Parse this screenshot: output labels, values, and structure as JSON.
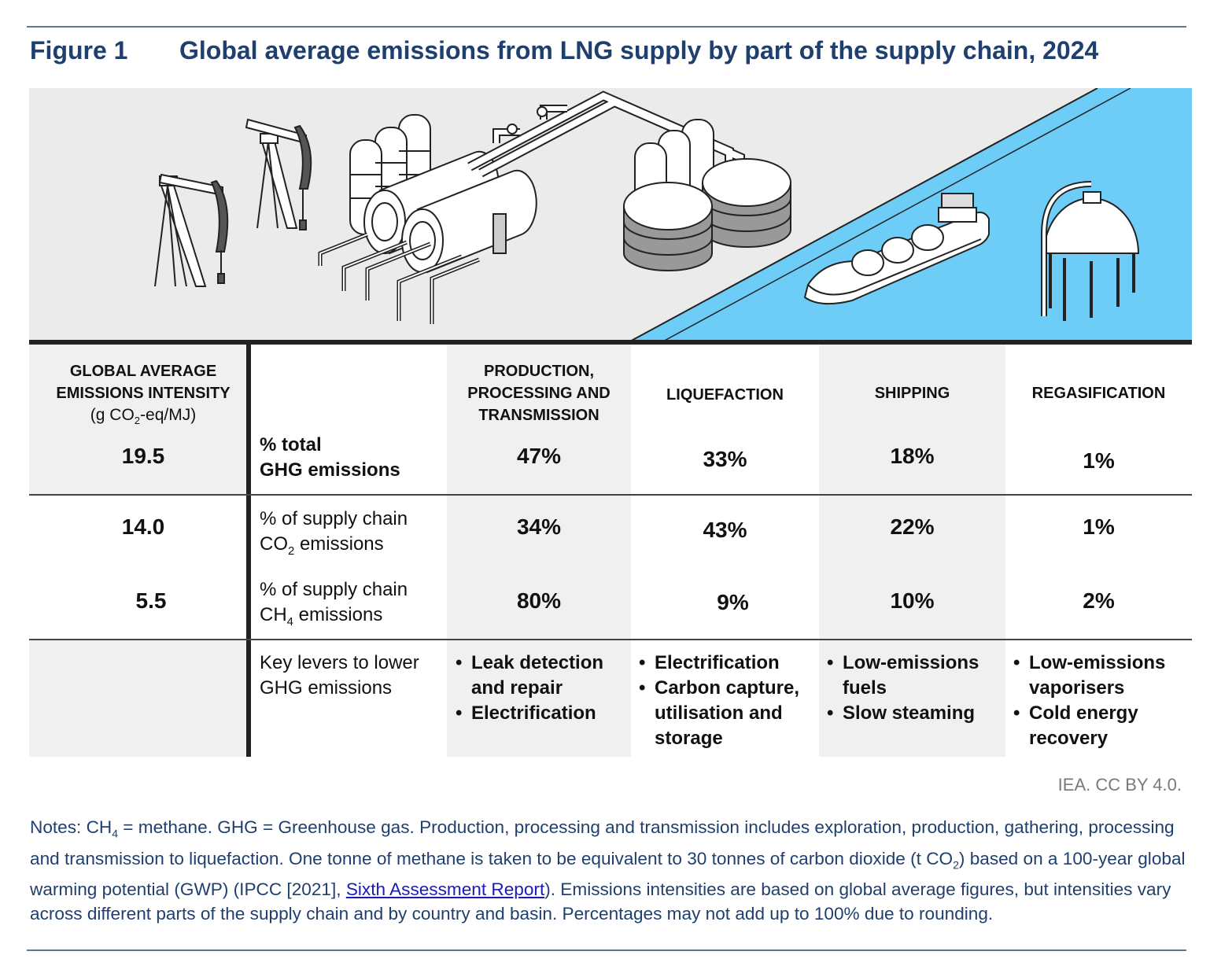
{
  "figure": {
    "number": "Figure 1",
    "title": "Global average emissions from LNG supply by part of the supply chain, 2024"
  },
  "illustration": {
    "water_color": "#6ecdf7",
    "ground_color": "#ebebeb",
    "icons": [
      "pumpjack-icon",
      "processing-plant-icon",
      "pipeline-icon",
      "lng-storage-tank-icon",
      "lng-carrier-ship-icon",
      "regasification-tank-icon"
    ]
  },
  "table": {
    "intensity_header": {
      "line1": "GLOBAL AVERAGE",
      "line2": "EMISSIONS INTENSITY",
      "unit_prefix": "(g CO",
      "unit_sub": "2",
      "unit_suffix": "-eq/MJ)"
    },
    "columns": [
      {
        "line1": "PRODUCTION,",
        "line2": "PROCESSING AND",
        "line3": "TRANSMISSION"
      },
      {
        "line1": "LIQUEFACTION"
      },
      {
        "line1": "SHIPPING"
      },
      {
        "line1": "REGASIFICATION"
      }
    ],
    "rows": [
      {
        "intensity": "19.5",
        "label_line1": "% total",
        "label_line2": "GHG emissions",
        "values": [
          "47%",
          "33%",
          "18%",
          "1%"
        ]
      },
      {
        "intensity": "14.0",
        "label_line1": "% of supply chain",
        "label_line2_prefix": "CO",
        "label_line2_sub": "2",
        "label_line2_suffix": " emissions",
        "values": [
          "34%",
          "43%",
          "22%",
          "1%"
        ]
      },
      {
        "intensity": "5.5",
        "label_line1": "% of supply chain",
        "label_line2_prefix": "CH",
        "label_line2_sub": "4",
        "label_line2_suffix": " emissions",
        "values": [
          "80%",
          "9%",
          "10%",
          "2%"
        ]
      }
    ],
    "levers_label_line1": "Key levers to lower",
    "levers_label_line2": "GHG emissions",
    "levers": [
      [
        "Leak detection and repair",
        "Electrification"
      ],
      [
        "Electrification",
        "Carbon capture, utilisation and storage"
      ],
      [
        "Low-emissions fuels",
        "Slow steaming"
      ],
      [
        "Low-emissions vaporisers",
        "Cold energy recovery"
      ]
    ]
  },
  "credit": "IEA. CC BY 4.0.",
  "notes": {
    "part1": "Notes: CH",
    "sub1": "4",
    "part2": " = methane. GHG = Greenhouse gas. Production, processing and transmission includes exploration, production, gathering, processing and transmission to liquefaction. One tonne of methane is taken to be equivalent to 30 tonnes of carbon dioxide (t CO",
    "sub2": "2",
    "part3": ") based on a 100-year global warming potential (GWP) (IPCC [2021], ",
    "link": "Sixth Assessment Report",
    "part4": "). Emissions intensities are based on global average figures, but intensities vary across different parts of the supply chain and by country and basin. Percentages may not add up to 100% due to rounding."
  }
}
